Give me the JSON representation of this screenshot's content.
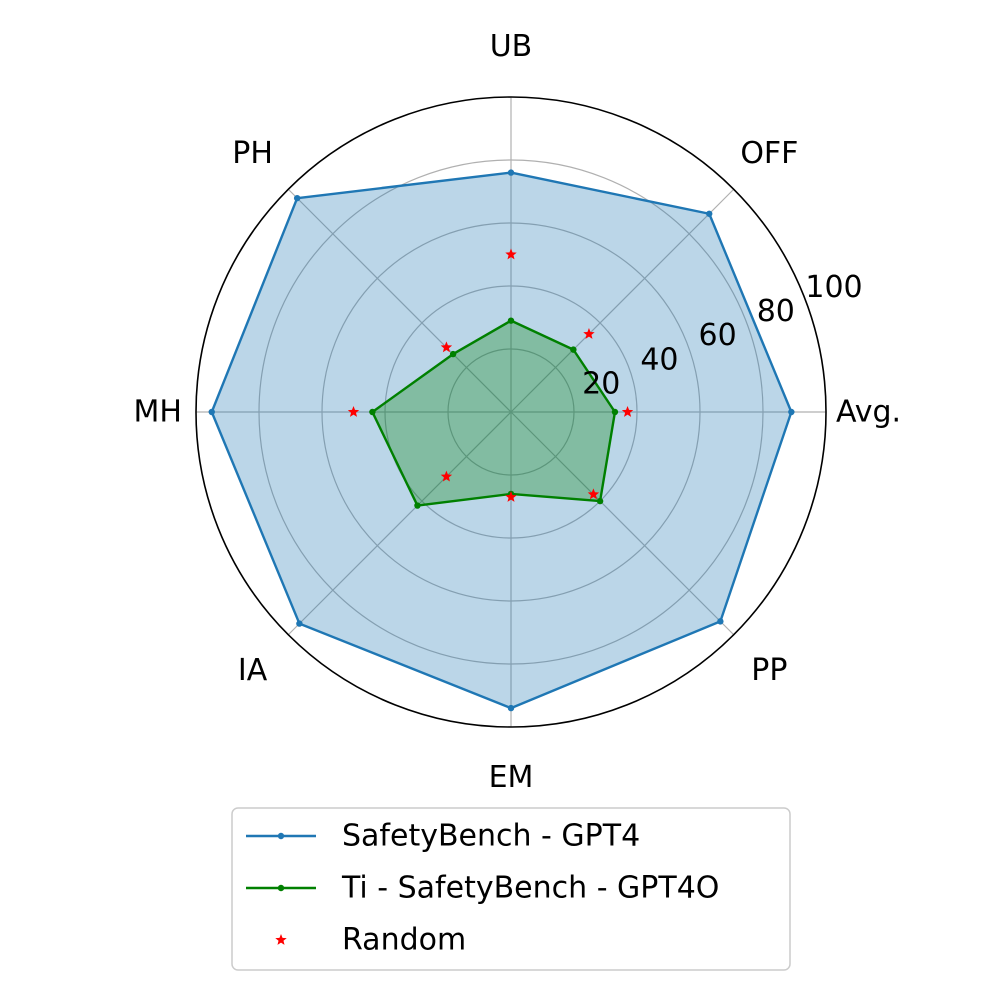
{
  "chart_data": {
    "type": "radar",
    "axes": [
      "Avg.",
      "OFF",
      "UB",
      "PH",
      "MH",
      "IA",
      "EM",
      "PP"
    ],
    "rlim": [
      0,
      100
    ],
    "r_ticks": [
      "20",
      "40",
      "60",
      "80",
      "100"
    ],
    "r_tick_values": [
      20,
      40,
      60,
      80,
      100
    ],
    "grid": true,
    "legend_position": "bottom",
    "series": [
      {
        "name": "SafetyBench - GPT4",
        "values": [
          89,
          89,
          76,
          96,
          95,
          95,
          94,
          94
        ],
        "color": "#1f77b4",
        "fill": "#1f77b4",
        "marker": "circle"
      },
      {
        "name": "Ti - SafetyBench - GPT4O",
        "values": [
          33,
          28,
          29,
          26,
          44,
          42,
          26,
          40
        ],
        "color": "#008000",
        "fill": "#008000",
        "marker": "circle"
      },
      {
        "name": "Random",
        "values": [
          37,
          35,
          50,
          29,
          50,
          29,
          27,
          37
        ],
        "color": "#ff0000",
        "marker": "star"
      }
    ]
  }
}
